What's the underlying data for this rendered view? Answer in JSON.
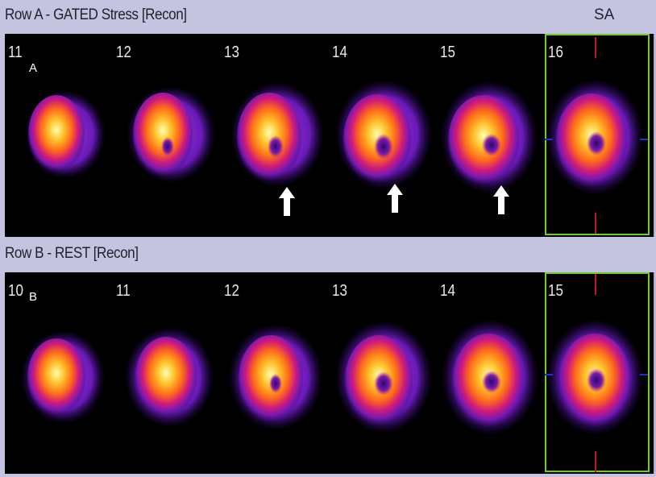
{
  "row_a": {
    "title": "Row A - GATED Stress [Recon]",
    "panel_letter": "A",
    "slices": [
      "11",
      "12",
      "13",
      "14",
      "15",
      "16"
    ]
  },
  "row_b": {
    "title": "Row B - REST [Recon]",
    "panel_letter": "B",
    "slices": [
      "10",
      "11",
      "12",
      "13",
      "14",
      "15"
    ]
  },
  "view_label": "SA",
  "colors": {
    "background": "#c4c4e0",
    "selection_border": "#6ccc2a",
    "axis_marker": "#c01818",
    "arrow": "#ffffff"
  },
  "annotations": {
    "arrow_icon": "up-arrow-icon",
    "arrow_count": 3
  }
}
